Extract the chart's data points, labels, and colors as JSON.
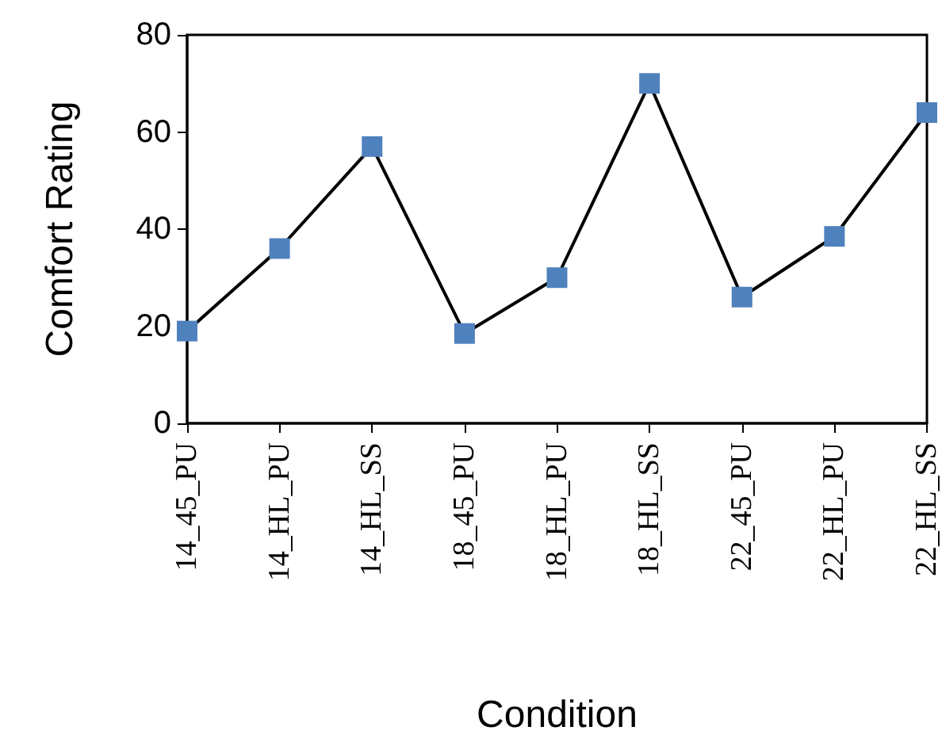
{
  "chart_data": {
    "type": "line",
    "xlabel": "Condition",
    "ylabel": "Comfort Rating",
    "categories": [
      "14_45_PU",
      "14_HL_PU",
      "14_HL_SS",
      "18_45_PU",
      "18_HL_PU",
      "18_HL_SS",
      "22_45_PU",
      "22_HL_PU",
      "22_HL_SS"
    ],
    "series": [
      {
        "color": "#4f81bd",
        "values": [
          19,
          36,
          57,
          18.5,
          30,
          70,
          26,
          38.5,
          64
        ]
      }
    ],
    "ylim": [
      0,
      80
    ],
    "yticks": [
      0,
      20,
      40,
      60,
      80
    ],
    "grid": false,
    "marker": "square",
    "line_style": "solid"
  }
}
